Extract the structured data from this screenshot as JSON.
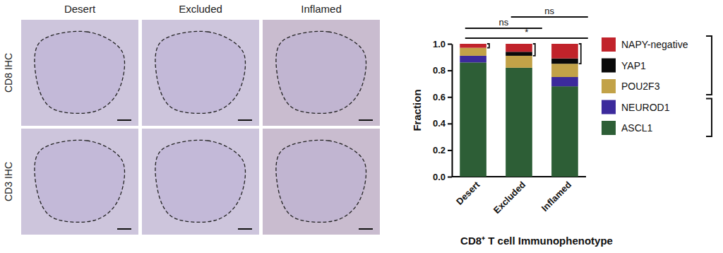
{
  "figure_panels": {
    "columns": [
      "Desert",
      "Excluded",
      "Inflamed"
    ],
    "rows": [
      "CD8 IHC",
      "CD3 IHC"
    ]
  },
  "chart_data": {
    "type": "bar",
    "stacked": true,
    "categories": [
      "Desert",
      "Excluded",
      "Inflamed"
    ],
    "x_label": "CD8⁺ T cell Immunophenotype",
    "y_label": "Fraction",
    "ylim": [
      0,
      1
    ],
    "yticks": [
      {
        "value": 0,
        "label": "0.0"
      },
      {
        "value": 0.2,
        "label": "0.2"
      },
      {
        "value": 0.4,
        "label": "0.4"
      },
      {
        "value": 0.6,
        "label": "0.6"
      },
      {
        "value": 0.8,
        "label": "0.8"
      },
      {
        "value": 1,
        "label": "1.0"
      }
    ],
    "legend": "right",
    "series": [
      {
        "name": "ASCL1",
        "color": "#2d5e36",
        "values": [
          0.86,
          0.82,
          0.68
        ]
      },
      {
        "name": "NEUROD1",
        "color": "#3c2a9c",
        "values": [
          0.05,
          0,
          0.07
        ]
      },
      {
        "name": "POU2F3",
        "color": "#c2a248",
        "values": [
          0.06,
          0.09,
          0.1
        ]
      },
      {
        "name": "YAP1",
        "color": "#0a0a0a",
        "values": [
          0,
          0.03,
          0.04
        ]
      },
      {
        "name": "NAPY-negative",
        "color": "#c1232b",
        "values": [
          0.03,
          0.06,
          0.11
        ]
      }
    ],
    "annotations": [
      {
        "text": "ns",
        "from": "Desert",
        "to": "Excluded"
      },
      {
        "text": "ns",
        "from": "Excluded",
        "to": "Inflamed"
      },
      {
        "text": "*",
        "from": "Desert",
        "to": "Inflamed"
      }
    ]
  }
}
